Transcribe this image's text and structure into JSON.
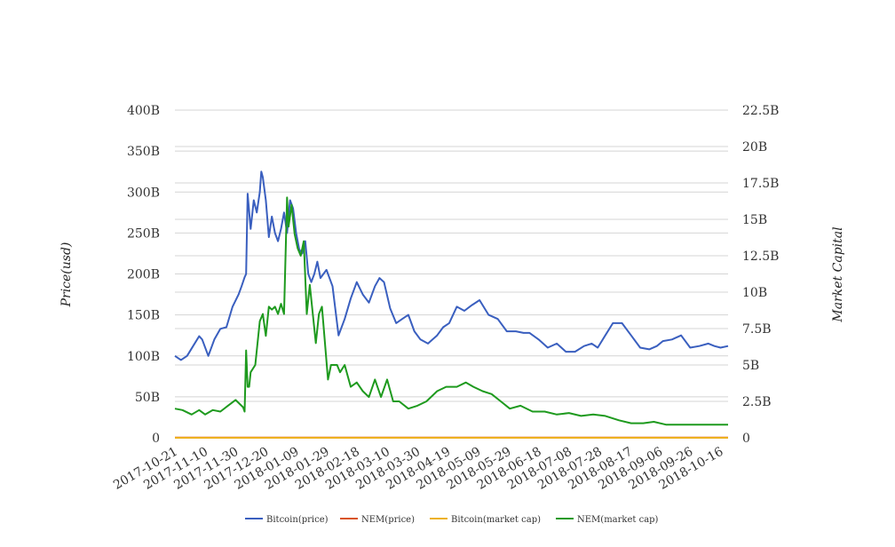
{
  "chart_data": {
    "type": "line",
    "title": "",
    "y_left_label": "Price(usd)",
    "y_right_label": "Market Capital",
    "y_left_ticks": [
      "0",
      "50B",
      "100B",
      "150B",
      "200B",
      "250B",
      "300B",
      "350B",
      "400B"
    ],
    "y_right_ticks": [
      "0",
      "2.5B",
      "5B",
      "7.5B",
      "10B",
      "12.5B",
      "15B",
      "17.5B",
      "20B",
      "22.5B"
    ],
    "y_left_range": [
      0,
      400000000000
    ],
    "y_right_range": [
      0,
      22500000000
    ],
    "x_ticks": [
      "2017-10-21",
      "2017-11-10",
      "2017-11-30",
      "2017-12-20",
      "2018-01-09",
      "2018-01-29",
      "2018-02-18",
      "2018-03-10",
      "2018-03-30",
      "2018-04-19",
      "2018-05-09",
      "2018-05-29",
      "2018-06-18",
      "2018-07-08",
      "2018-07-28",
      "2018-08-17",
      "2018-09-06",
      "2018-09-26",
      "2018-10-16"
    ],
    "x_range": [
      "2017-10-21",
      "2018-10-21"
    ],
    "grid": true,
    "legend_position": "bottom",
    "colors": {
      "bitcoin_price": "#3a5fbf",
      "nem_price": "#d9531e",
      "bitcoin_mcap": "#edb120",
      "nem_mcap": "#1e9a1e"
    },
    "series": [
      {
        "name": "Bitcoin(price)",
        "axis": "left",
        "color": "#3a5fbf",
        "x": [
          "2017-10-21",
          "2017-10-25",
          "2017-10-29",
          "2017-11-02",
          "2017-11-06",
          "2017-11-08",
          "2017-11-12",
          "2017-11-16",
          "2017-11-20",
          "2017-11-24",
          "2017-11-28",
          "2017-12-02",
          "2017-12-04",
          "2017-12-06",
          "2017-12-07",
          "2017-12-08",
          "2017-12-10",
          "2017-12-12",
          "2017-12-14",
          "2017-12-16",
          "2017-12-17",
          "2017-12-18",
          "2017-12-20",
          "2017-12-22",
          "2017-12-24",
          "2017-12-26",
          "2017-12-28",
          "2017-12-30",
          "2018-01-01",
          "2018-01-03",
          "2018-01-05",
          "2018-01-07",
          "2018-01-09",
          "2018-01-11",
          "2018-01-13",
          "2018-01-15",
          "2018-01-17",
          "2018-01-19",
          "2018-01-21",
          "2018-01-23",
          "2018-01-25",
          "2018-01-29",
          "2018-02-02",
          "2018-02-06",
          "2018-02-10",
          "2018-02-14",
          "2018-02-18",
          "2018-02-22",
          "2018-02-26",
          "2018-03-02",
          "2018-03-05",
          "2018-03-08",
          "2018-03-12",
          "2018-03-16",
          "2018-03-20",
          "2018-03-24",
          "2018-03-28",
          "2018-04-01",
          "2018-04-06",
          "2018-04-12",
          "2018-04-16",
          "2018-04-20",
          "2018-04-25",
          "2018-04-30",
          "2018-05-05",
          "2018-05-10",
          "2018-05-16",
          "2018-05-22",
          "2018-05-28",
          "2018-06-03",
          "2018-06-08",
          "2018-06-12",
          "2018-06-18",
          "2018-06-24",
          "2018-06-30",
          "2018-07-06",
          "2018-07-12",
          "2018-07-18",
          "2018-07-23",
          "2018-07-27",
          "2018-08-01",
          "2018-08-06",
          "2018-08-12",
          "2018-08-18",
          "2018-08-24",
          "2018-08-30",
          "2018-09-04",
          "2018-09-08",
          "2018-09-14",
          "2018-09-20",
          "2018-09-26",
          "2018-10-02",
          "2018-10-08",
          "2018-10-12",
          "2018-10-16",
          "2018-10-21"
        ],
        "y": [
          100,
          95,
          100,
          112,
          124,
          120,
          100,
          120,
          133,
          135,
          160,
          175,
          185,
          196,
          200,
          298,
          255,
          290,
          275,
          300,
          325,
          318,
          290,
          245,
          270,
          250,
          240,
          255,
          275,
          250,
          290,
          280,
          250,
          230,
          225,
          240,
          200,
          190,
          200,
          215,
          195,
          205,
          185,
          125,
          145,
          170,
          190,
          175,
          165,
          185,
          195,
          190,
          158,
          140,
          145,
          150,
          130,
          120,
          115,
          125,
          135,
          140,
          160,
          155,
          162,
          168,
          150,
          145,
          130,
          130,
          128,
          128,
          120,
          110,
          115,
          105,
          105,
          112,
          115,
          110,
          125,
          140,
          140,
          125,
          110,
          108,
          112,
          118,
          120,
          125,
          110,
          112,
          115,
          112,
          110,
          112
        ],
        "scale": 1000000000
      },
      {
        "name": "NEM(price)",
        "axis": "left",
        "color": "#d9531e",
        "x": [
          "2017-10-21",
          "2018-10-21"
        ],
        "y": [
          0.2,
          0.2
        ],
        "scale": 1000000000
      },
      {
        "name": "Bitcoin(market cap)",
        "axis": "right",
        "color": "#edb120",
        "x": [
          "2017-10-21",
          "2018-10-21"
        ],
        "y": [
          0.0,
          0.0
        ],
        "scale": 1000000000
      },
      {
        "name": "NEM(market cap)",
        "axis": "right",
        "color": "#1e9a1e",
        "x": [
          "2017-10-21",
          "2017-10-26",
          "2017-11-01",
          "2017-11-06",
          "2017-11-10",
          "2017-11-15",
          "2017-11-20",
          "2017-11-25",
          "2017-11-30",
          "2017-12-05",
          "2017-12-06",
          "2017-12-07",
          "2017-12-08",
          "2017-12-09",
          "2017-12-10",
          "2017-12-13",
          "2017-12-16",
          "2017-12-18",
          "2017-12-20",
          "2017-12-22",
          "2017-12-24",
          "2017-12-26",
          "2017-12-28",
          "2017-12-30",
          "2018-01-01",
          "2018-01-03",
          "2018-01-04",
          "2018-01-06",
          "2018-01-08",
          "2018-01-10",
          "2018-01-12",
          "2018-01-14",
          "2018-01-16",
          "2018-01-18",
          "2018-01-20",
          "2018-01-22",
          "2018-01-24",
          "2018-01-26",
          "2018-01-28",
          "2018-01-30",
          "2018-02-01",
          "2018-02-03",
          "2018-02-05",
          "2018-02-07",
          "2018-02-10",
          "2018-02-14",
          "2018-02-18",
          "2018-02-22",
          "2018-02-26",
          "2018-03-02",
          "2018-03-06",
          "2018-03-10",
          "2018-03-14",
          "2018-03-18",
          "2018-03-24",
          "2018-03-30",
          "2018-04-05",
          "2018-04-12",
          "2018-04-18",
          "2018-04-25",
          "2018-05-01",
          "2018-05-06",
          "2018-05-12",
          "2018-05-18",
          "2018-05-24",
          "2018-05-30",
          "2018-06-06",
          "2018-06-14",
          "2018-06-22",
          "2018-06-30",
          "2018-07-08",
          "2018-07-16",
          "2018-07-24",
          "2018-08-01",
          "2018-08-10",
          "2018-08-18",
          "2018-08-26",
          "2018-09-02",
          "2018-09-10",
          "2018-09-18",
          "2018-09-26",
          "2018-10-04",
          "2018-10-12",
          "2018-10-21"
        ],
        "y": [
          2.0,
          1.9,
          1.6,
          1.9,
          1.6,
          1.9,
          1.8,
          2.2,
          2.6,
          2.1,
          1.8,
          6.0,
          3.5,
          3.5,
          4.5,
          5.0,
          8.0,
          8.5,
          7.0,
          9.0,
          8.8,
          9.0,
          8.5,
          9.2,
          8.5,
          16.5,
          14.5,
          16.0,
          14.0,
          13.0,
          12.5,
          13.5,
          8.5,
          10.5,
          8.5,
          6.5,
          8.5,
          9.0,
          6.5,
          4.0,
          5.0,
          5.0,
          5.0,
          4.5,
          5.0,
          3.5,
          3.8,
          3.2,
          2.8,
          4.0,
          2.8,
          4.0,
          2.5,
          2.5,
          2.0,
          2.2,
          2.5,
          3.2,
          3.5,
          3.5,
          3.8,
          3.5,
          3.2,
          3.0,
          2.5,
          2.0,
          2.2,
          1.8,
          1.8,
          1.6,
          1.7,
          1.5,
          1.6,
          1.5,
          1.2,
          1.0,
          1.0,
          1.1,
          0.9,
          0.9,
          0.9,
          0.9,
          0.9,
          0.9
        ],
        "scale": 1000000000
      }
    ]
  }
}
